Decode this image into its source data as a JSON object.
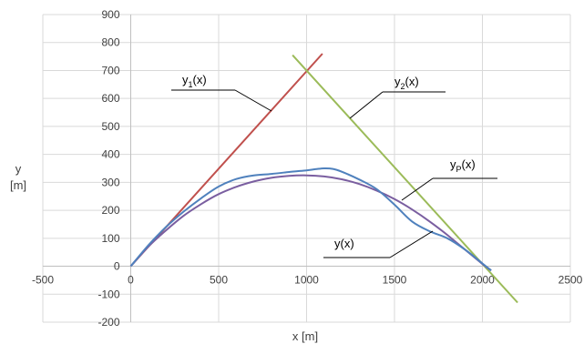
{
  "chart_data": {
    "type": "line",
    "xlabel": "x [m]",
    "ylabel_line1": "y",
    "ylabel_line2": "[m]",
    "xlim": [
      -500,
      2500
    ],
    "ylim": [
      -200,
      900
    ],
    "x_ticks": [
      -500,
      0,
      500,
      1000,
      1500,
      2000,
      2500
    ],
    "y_ticks": [
      -200,
      -100,
      0,
      100,
      200,
      300,
      400,
      500,
      600,
      700,
      800,
      900
    ],
    "grid": true,
    "legend": "none",
    "annotations": {
      "y1": {
        "base": "y",
        "sub": "1",
        "tail": "(x)"
      },
      "y2": {
        "base": "y",
        "sub": "2",
        "tail": "(x)"
      },
      "yp": {
        "base": "y",
        "sub": "P",
        "tail": "(x)"
      },
      "y": {
        "base": "y",
        "sub": "",
        "tail": "(x)"
      }
    },
    "series": [
      {
        "id": "y1",
        "color": "#c0504d",
        "x": [
          0,
          1090
        ],
        "y": [
          0,
          760
        ]
      },
      {
        "id": "y2",
        "color": "#9bbb59",
        "x": [
          920,
          2200
        ],
        "y": [
          755,
          -130
        ]
      },
      {
        "id": "yp",
        "color": "#7a5ea0",
        "x": [
          0,
          100,
          200,
          300,
          400,
          500,
          600,
          700,
          800,
          900,
          1000,
          1100,
          1200,
          1300,
          1400,
          1500,
          1600,
          1700,
          1800,
          1900,
          2000,
          2050
        ],
        "y": [
          0,
          70,
          128,
          180,
          222,
          258,
          284,
          303,
          316,
          323,
          325,
          321,
          311,
          294,
          270,
          240,
          203,
          160,
          112,
          60,
          8,
          -15
        ]
      },
      {
        "id": "y",
        "color": "#4f81bd",
        "x": [
          0,
          100,
          200,
          300,
          400,
          500,
          600,
          700,
          800,
          900,
          1000,
          1050,
          1100,
          1150,
          1200,
          1300,
          1400,
          1500,
          1600,
          1700,
          1800,
          1900,
          2000,
          2050
        ],
        "y": [
          0,
          75,
          140,
          195,
          243,
          285,
          312,
          325,
          330,
          337,
          343,
          347,
          350,
          348,
          338,
          310,
          275,
          220,
          160,
          125,
          100,
          60,
          10,
          -15
        ]
      }
    ]
  }
}
